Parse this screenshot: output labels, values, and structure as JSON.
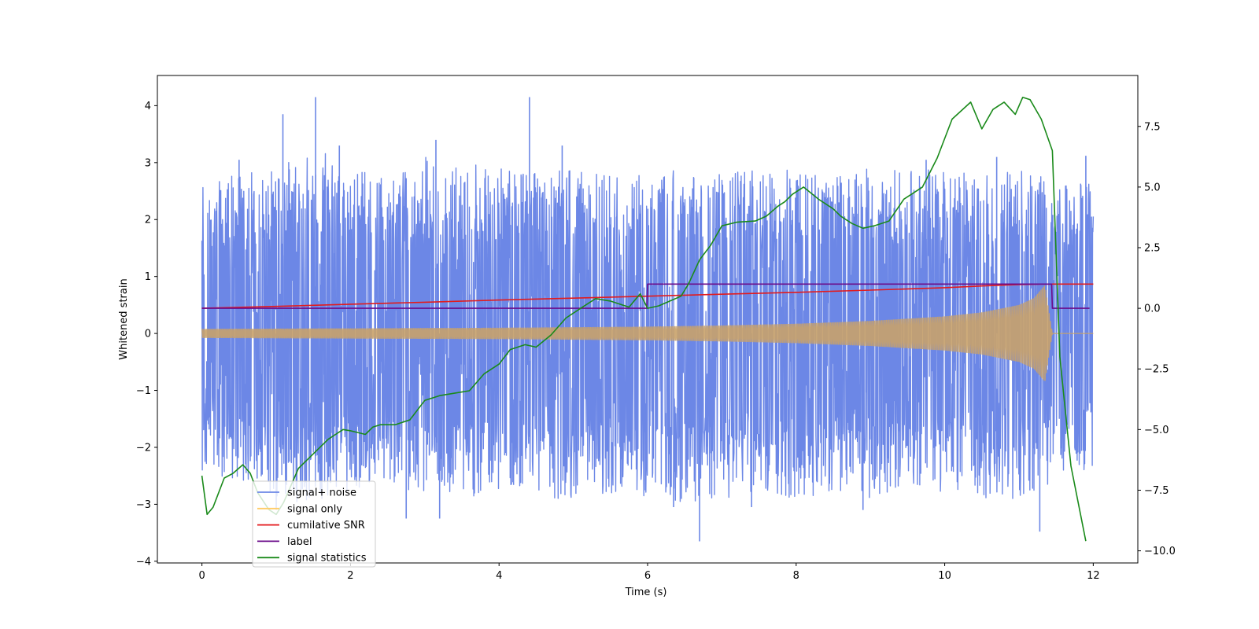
{
  "chart_data": {
    "type": "line",
    "title": "",
    "xlabel": "Time (s)",
    "ylabel": "Whitened strain",
    "y2label": "",
    "xlim": [
      -0.6,
      12.6
    ],
    "ylim": [
      -4.03,
      4.53
    ],
    "y2lim": [
      -10.5,
      9.6
    ],
    "xticks": [
      0,
      2,
      4,
      6,
      8,
      10,
      12
    ],
    "xtick_labels": [
      "0",
      "2",
      "4",
      "6",
      "8",
      "10",
      "12"
    ],
    "yticks": [
      -4,
      -3,
      -2,
      -1,
      0,
      1,
      2,
      3,
      4
    ],
    "ytick_labels": [
      "−4",
      "−3",
      "−2",
      "−1",
      "0",
      "1",
      "2",
      "3",
      "4"
    ],
    "y2ticks": [
      -10,
      -7.5,
      -5,
      -2.5,
      0,
      2.5,
      5,
      7.5
    ],
    "y2tick_labels": [
      "−10.0",
      "−7.5",
      "−5.0",
      "−2.5",
      "0.0",
      "2.5",
      "5.0",
      "7.5"
    ],
    "grid": false,
    "legend_position": "lower-left",
    "series": [
      {
        "name": "signal+ noise",
        "axis": "left",
        "color": "#6c87e6",
        "kind": "noise-envelope",
        "x": [
          0,
          0.5,
          1,
          1.5,
          2,
          2.5,
          3,
          3.5,
          4,
          4.5,
          5,
          5.5,
          6,
          6.5,
          7,
          7.5,
          8,
          8.5,
          9,
          9.5,
          10,
          10.5,
          11,
          11.4,
          11.6,
          12
        ],
        "upper": [
          2.7,
          2.8,
          2.9,
          3.3,
          2.9,
          2.8,
          3.1,
          3.0,
          2.9,
          3.0,
          2.9,
          2.8,
          2.8,
          2.9,
          2.9,
          2.9,
          2.9,
          2.8,
          2.9,
          2.9,
          2.9,
          2.8,
          2.9,
          2.7,
          2.6,
          2.7
        ],
        "lower": [
          -2.4,
          -2.6,
          -2.9,
          -3.0,
          -2.8,
          -2.7,
          -2.9,
          -2.9,
          -2.8,
          -2.9,
          -2.9,
          -2.8,
          -2.9,
          -3.0,
          -2.9,
          -2.8,
          -2.9,
          -2.8,
          -2.9,
          -2.8,
          -2.8,
          -2.9,
          -2.9,
          -2.7,
          -2.4,
          -2.4
        ],
        "spikes": [
          {
            "x": 1.09,
            "y": 3.85
          },
          {
            "x": 1.53,
            "y": 4.15
          },
          {
            "x": 4.41,
            "y": 4.15
          },
          {
            "x": 3.15,
            "y": 3.4
          },
          {
            "x": 4.85,
            "y": 3.3
          },
          {
            "x": 0.5,
            "y": 3.05
          },
          {
            "x": 1.85,
            "y": 3.3
          },
          {
            "x": 6.7,
            "y": -3.65
          },
          {
            "x": 11.28,
            "y": -3.48
          },
          {
            "x": 2.75,
            "y": -3.25
          },
          {
            "x": 3.2,
            "y": -3.25
          },
          {
            "x": 6.35,
            "y": -3.05
          },
          {
            "x": 7.4,
            "y": -3.05
          },
          {
            "x": 8.9,
            "y": -3.1
          },
          {
            "x": 1.0,
            "y": -3.1
          },
          {
            "x": 11.9,
            "y": 3.12
          },
          {
            "x": 9.75,
            "y": 3.05
          },
          {
            "x": 10.7,
            "y": 3.1
          }
        ]
      },
      {
        "name": "signal only",
        "axis": "left",
        "color": "#ffcc66",
        "kind": "chirp-envelope",
        "x": [
          0,
          1,
          2,
          3,
          4,
          5,
          6,
          7,
          8,
          9,
          10,
          10.5,
          11,
          11.2,
          11.35,
          11.45,
          12
        ],
        "amplitude": [
          0.08,
          0.085,
          0.09,
          0.095,
          0.1,
          0.11,
          0.12,
          0.14,
          0.17,
          0.22,
          0.3,
          0.37,
          0.5,
          0.62,
          0.85,
          0.0,
          0.0
        ]
      },
      {
        "name": "cumilative SNR",
        "axis": "right",
        "color": "#e31a1c",
        "x": [
          0,
          1,
          2,
          3,
          4,
          5,
          6,
          7,
          8,
          9,
          10,
          10.5,
          11,
          11.3,
          11.45,
          12
        ],
        "values": [
          0,
          0.08,
          0.17,
          0.25,
          0.34,
          0.42,
          0.5,
          0.58,
          0.66,
          0.75,
          0.85,
          0.92,
          0.98,
          1.0,
          1.0,
          1.0
        ]
      },
      {
        "name": "label",
        "axis": "right",
        "color": "#6b0c8a",
        "x": [
          0,
          5.99,
          6.0,
          11.44,
          11.45,
          11.95
        ],
        "values": [
          0,
          0,
          1,
          1,
          0,
          0
        ]
      },
      {
        "name": "signal statistics",
        "axis": "right",
        "color": "#1a8a1a",
        "x": [
          0,
          0.07,
          0.15,
          0.3,
          0.42,
          0.55,
          0.65,
          0.75,
          0.9,
          1.0,
          1.1,
          1.3,
          1.5,
          1.7,
          1.8,
          1.9,
          2.0,
          2.2,
          2.3,
          2.4,
          2.6,
          2.8,
          3.0,
          3.2,
          3.4,
          3.6,
          3.8,
          4.0,
          4.15,
          4.35,
          4.5,
          4.7,
          4.9,
          5.1,
          5.3,
          5.5,
          5.6,
          5.75,
          5.9,
          6.0,
          6.15,
          6.3,
          6.45,
          6.55,
          6.7,
          6.85,
          7.0,
          7.2,
          7.45,
          7.6,
          7.75,
          7.85,
          7.95,
          8.1,
          8.3,
          8.5,
          8.6,
          8.75,
          8.9,
          9.05,
          9.25,
          9.45,
          9.7,
          9.9,
          10.1,
          10.35,
          10.5,
          10.65,
          10.8,
          10.95,
          11.05,
          11.15,
          11.3,
          11.45,
          11.55,
          11.7,
          11.9
        ],
        "values": [
          -6.9,
          -8.5,
          -8.2,
          -7.0,
          -6.8,
          -6.45,
          -6.8,
          -7.6,
          -8.3,
          -8.5,
          -8.0,
          -6.6,
          -6.0,
          -5.4,
          -5.2,
          -5.0,
          -5.05,
          -5.2,
          -4.9,
          -4.8,
          -4.8,
          -4.6,
          -3.8,
          -3.6,
          -3.5,
          -3.4,
          -2.7,
          -2.3,
          -1.7,
          -1.5,
          -1.6,
          -1.1,
          -0.4,
          0.0,
          0.4,
          0.3,
          0.2,
          0.05,
          0.6,
          0.0,
          0.1,
          0.3,
          0.5,
          1.0,
          2.0,
          2.6,
          3.4,
          3.55,
          3.6,
          3.8,
          4.2,
          4.4,
          4.7,
          5.0,
          4.5,
          4.1,
          3.8,
          3.5,
          3.3,
          3.4,
          3.6,
          4.5,
          5.0,
          6.2,
          7.8,
          8.5,
          7.4,
          8.2,
          8.5,
          8.0,
          8.7,
          8.6,
          7.8,
          6.5,
          -2.0,
          -6.5,
          -9.6
        ]
      }
    ]
  }
}
